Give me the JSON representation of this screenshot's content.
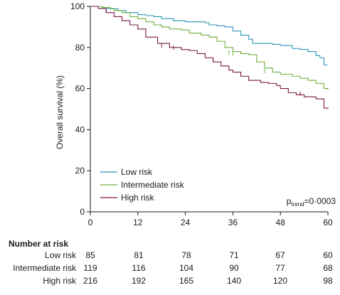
{
  "chart_data": {
    "type": "line",
    "ylabel": "Overall survival (%)",
    "xlabel": "",
    "xlim": [
      0,
      60
    ],
    "ylim": [
      0,
      100
    ],
    "xticks": [
      "0",
      "12",
      "24",
      "36",
      "48",
      "60"
    ],
    "yticks": [
      "0",
      "20",
      "40",
      "60",
      "80",
      "100"
    ],
    "legend_position": "bottom-left",
    "series": [
      {
        "name": "Low risk",
        "color": "#2b93b8",
        "points": [
          [
            0,
            100
          ],
          [
            3,
            99
          ],
          [
            5,
            98.8
          ],
          [
            7,
            98
          ],
          [
            9,
            97
          ],
          [
            12,
            96
          ],
          [
            14,
            95.5
          ],
          [
            16,
            95
          ],
          [
            18,
            94
          ],
          [
            21,
            93
          ],
          [
            24,
            92.5
          ],
          [
            27,
            92.5
          ],
          [
            29,
            92
          ],
          [
            30,
            91
          ],
          [
            32,
            90.5
          ],
          [
            34,
            90
          ],
          [
            36,
            88
          ],
          [
            38,
            86
          ],
          [
            40,
            84
          ],
          [
            41,
            82
          ],
          [
            43,
            82
          ],
          [
            46,
            81.5
          ],
          [
            48,
            81
          ],
          [
            51,
            79.5
          ],
          [
            53,
            79
          ],
          [
            55,
            78
          ],
          [
            57,
            76
          ],
          [
            58,
            75
          ],
          [
            59,
            71.5
          ],
          [
            60,
            71.5
          ]
        ],
        "censor": [
          [
            59,
            72.5
          ]
        ]
      },
      {
        "name": "Intermediate risk",
        "color": "#6fae3c",
        "points": [
          [
            0,
            100
          ],
          [
            3,
            99.5
          ],
          [
            5,
            99
          ],
          [
            6,
            98
          ],
          [
            8,
            97
          ],
          [
            10,
            95
          ],
          [
            12,
            94
          ],
          [
            14,
            92.5
          ],
          [
            16,
            91
          ],
          [
            18,
            90
          ],
          [
            20,
            89
          ],
          [
            23,
            88.5
          ],
          [
            25,
            87
          ],
          [
            28,
            86
          ],
          [
            30,
            85
          ],
          [
            32,
            83
          ],
          [
            34,
            80
          ],
          [
            36,
            78
          ],
          [
            38,
            77
          ],
          [
            40,
            76.5
          ],
          [
            42,
            73
          ],
          [
            44,
            70
          ],
          [
            46,
            68
          ],
          [
            48,
            67
          ],
          [
            51,
            66
          ],
          [
            53,
            65
          ],
          [
            55,
            64
          ],
          [
            57,
            62.5
          ],
          [
            59,
            60
          ],
          [
            60,
            59.5
          ]
        ],
        "censor": [
          [
            35,
            77.5
          ],
          [
            36,
            77
          ],
          [
            44,
            68.5
          ],
          [
            59,
            61
          ]
        ]
      },
      {
        "name": "High risk",
        "color": "#7a1848",
        "points": [
          [
            0,
            100
          ],
          [
            2,
            99
          ],
          [
            4,
            97
          ],
          [
            6,
            95
          ],
          [
            8,
            93
          ],
          [
            10,
            91
          ],
          [
            12,
            89
          ],
          [
            14,
            85
          ],
          [
            17,
            82
          ],
          [
            20,
            80
          ],
          [
            23,
            79
          ],
          [
            25,
            78.5
          ],
          [
            27,
            77
          ],
          [
            29,
            75
          ],
          [
            31,
            73
          ],
          [
            33,
            71
          ],
          [
            35,
            69
          ],
          [
            36,
            68
          ],
          [
            38,
            66
          ],
          [
            40,
            64
          ],
          [
            43,
            63
          ],
          [
            45,
            62.5
          ],
          [
            47,
            61.5
          ],
          [
            48,
            60
          ],
          [
            50,
            58
          ],
          [
            52,
            57
          ],
          [
            54,
            56
          ],
          [
            57,
            55
          ],
          [
            59,
            50.5
          ],
          [
            60,
            50
          ]
        ],
        "censor": [
          [
            4,
            98
          ],
          [
            18,
            81
          ],
          [
            21,
            80
          ],
          [
            31,
            74
          ],
          [
            53,
            57.5
          ]
        ]
      }
    ],
    "annotation": {
      "p_main": "p",
      "p_sub": "trend",
      "p_value": "=0·0003"
    }
  },
  "risk_table": {
    "title": "Number at risk",
    "rows": [
      {
        "label": "Low risk",
        "values": [
          "85",
          "81",
          "78",
          "71",
          "67",
          "60"
        ]
      },
      {
        "label": "Intermediate risk",
        "values": [
          "119",
          "116",
          "104",
          "90",
          "77",
          "68"
        ]
      },
      {
        "label": "High risk",
        "values": [
          "216",
          "192",
          "165",
          "140",
          "120",
          "98"
        ]
      }
    ]
  }
}
